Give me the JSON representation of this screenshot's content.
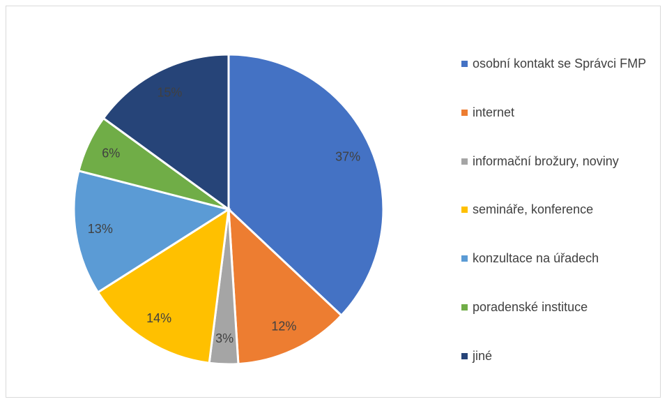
{
  "chart_data": {
    "type": "pie",
    "categories": [
      "osobní kontakt se Správci FMP",
      "internet",
      "informační brožury, noviny",
      "semináře, konference",
      "konzultace na úřadech",
      "poradenské instituce",
      "jiné"
    ],
    "values": [
      37,
      12,
      3,
      14,
      13,
      6,
      15
    ],
    "value_labels": [
      "37%",
      "12%",
      "3%",
      "14%",
      "13%",
      "6%",
      "15%"
    ],
    "colors": [
      "#4472c4",
      "#ed7d31",
      "#a5a5a5",
      "#ffc000",
      "#5b9bd5",
      "#70ad47",
      "#264478"
    ],
    "legend": "right"
  }
}
